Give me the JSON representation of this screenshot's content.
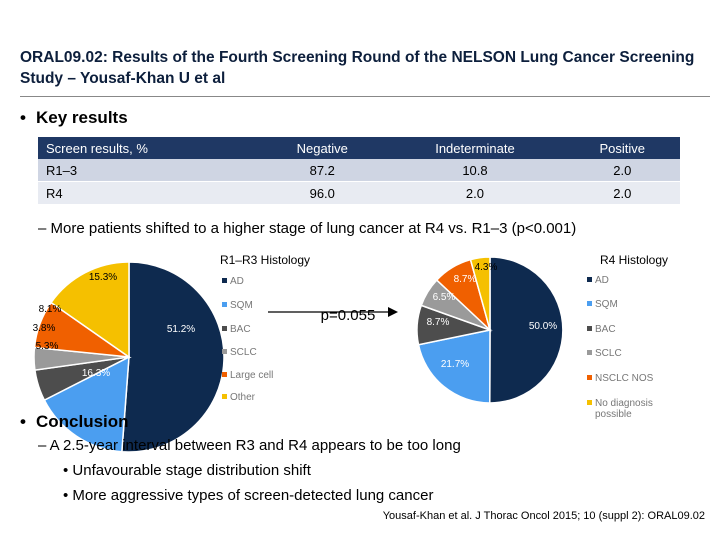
{
  "title": "ORAL09.02: Results of the Fourth Screening Round of the NELSON Lung Cancer Screening Study – Yousaf-Khan U et al",
  "key_results": {
    "heading": "Key results",
    "table": {
      "headers": [
        "Screen results, %",
        "Negative",
        "Indeterminate",
        "Positive"
      ],
      "rows": [
        [
          "R1–3",
          "87.2",
          "10.8",
          "2.0"
        ],
        [
          "R4",
          "96.0",
          "2.0",
          "2.0"
        ]
      ]
    },
    "finding": "– More patients shifted to a higher stage of lung cancer at R4 vs. R1–3 (p<0.001)"
  },
  "chart_data": [
    {
      "type": "pie",
      "title": "R1–R3 Histology",
      "categories": [
        "AD",
        "SQM",
        "BAC",
        "SCLC",
        "Large cell",
        "Other"
      ],
      "values": [
        51.2,
        16.3,
        5.3,
        3.8,
        8.1,
        15.3
      ],
      "labels": [
        "51.2%",
        "16.3%",
        "5.3%",
        "3.8%",
        "8.1%",
        "15.3%"
      ]
    },
    {
      "type": "pie",
      "title": "R4 Histology",
      "categories": [
        "AD",
        "SQM",
        "BAC",
        "SCLC",
        "NSCLC NOS",
        "No diagnosis possible"
      ],
      "values": [
        50.0,
        21.7,
        8.7,
        6.5,
        8.7,
        4.3
      ],
      "labels": [
        "50.0%",
        "21.7%",
        "8.7%",
        "6.5%",
        "8.7%",
        "4.3%"
      ]
    }
  ],
  "colors": {
    "AD": "#0e2a4f",
    "SQM": "#4b9ef0",
    "BAC": "#4d4d4d",
    "SCLC": "#9a9a9a",
    "orange": "#f06000",
    "yellow": "#f5c000",
    "header": "#1f3864"
  },
  "pvalue": "p=0.055",
  "conclusion": {
    "heading": "Conclusion",
    "point": "– A 2.5-year interval between R3 and R4 appears to be too long",
    "subpoints": [
      "• Unfavourable stage distribution shift",
      "• More aggressive types of screen-detected lung cancer"
    ]
  },
  "citation": "Yousaf-Khan et al. J Thorac Oncol 2015; 10 (suppl 2): ORAL09.02"
}
